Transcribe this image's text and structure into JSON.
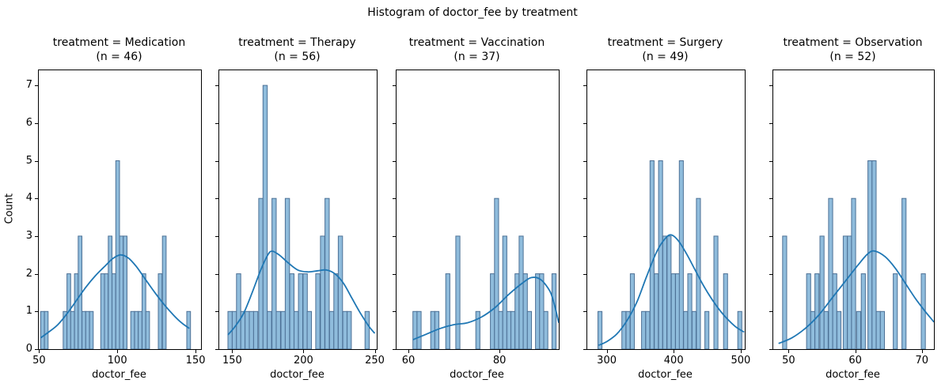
{
  "figure": {
    "suptitle": "Histogram of doctor_fee by treatment",
    "ylabel": "Count",
    "colors": {
      "bar_fill": "#8fbcdc",
      "bar_edge": "#4d7196",
      "kde_line": "#1f77b4",
      "spine": "#000000",
      "background": "#ffffff"
    }
  },
  "chart_data": {
    "type": "histogram",
    "subtype": "faceted histograms with kde overlay",
    "facet_by": "treatment",
    "x_variable": "doctor_fee",
    "y_variable": "Count",
    "title": "Histogram of doctor_fee by treatment",
    "grid": false,
    "legend": false,
    "ylim": [
      0,
      7.4
    ],
    "yticks": [
      0,
      1,
      2,
      3,
      4,
      5,
      6,
      7
    ],
    "panels": [
      {
        "title": "treatment = Medication",
        "subtitle": "(n = 46)",
        "n": 46,
        "xlabel": "doctor_fee",
        "xlim": [
          49.8,
          153.5
        ],
        "xticks": [
          50,
          100,
          150
        ],
        "bin_width": 2.4,
        "bars": [
          [
            51.0,
            1
          ],
          [
            53.4,
            1
          ],
          [
            65.4,
            1
          ],
          [
            67.8,
            2
          ],
          [
            70.2,
            1
          ],
          [
            72.6,
            2
          ],
          [
            75.0,
            3
          ],
          [
            77.4,
            1
          ],
          [
            79.8,
            1
          ],
          [
            82.2,
            1
          ],
          [
            89.4,
            2
          ],
          [
            91.8,
            2
          ],
          [
            94.2,
            3
          ],
          [
            96.6,
            2
          ],
          [
            99.0,
            5
          ],
          [
            101.4,
            3
          ],
          [
            103.8,
            3
          ],
          [
            108.6,
            1
          ],
          [
            111.0,
            1
          ],
          [
            113.4,
            1
          ],
          [
            115.8,
            2
          ],
          [
            118.2,
            1
          ],
          [
            126.2,
            2
          ],
          [
            128.8,
            3
          ],
          [
            144.4,
            1
          ]
        ],
        "kde": [
          [
            51,
            0.3
          ],
          [
            56,
            0.45
          ],
          [
            62,
            0.65
          ],
          [
            68,
            0.95
          ],
          [
            74,
            1.3
          ],
          [
            80,
            1.65
          ],
          [
            86,
            1.95
          ],
          [
            92,
            2.2
          ],
          [
            97,
            2.4
          ],
          [
            102,
            2.5
          ],
          [
            107,
            2.42
          ],
          [
            112,
            2.2
          ],
          [
            118,
            1.85
          ],
          [
            124,
            1.5
          ],
          [
            130,
            1.18
          ],
          [
            136,
            0.9
          ],
          [
            141,
            0.7
          ],
          [
            146,
            0.55
          ]
        ]
      },
      {
        "title": "treatment = Therapy",
        "subtitle": "(n = 56)",
        "n": 56,
        "xlabel": "doctor_fee",
        "xlim": [
          140.9,
          251.4
        ],
        "xticks": [
          150,
          200,
          250
        ],
        "bin_width": 3.0,
        "bars": [
          [
            147.0,
            1
          ],
          [
            150.0,
            1
          ],
          [
            153.0,
            2
          ],
          [
            156.0,
            1
          ],
          [
            159.0,
            1
          ],
          [
            162.0,
            1
          ],
          [
            165.0,
            1
          ],
          [
            168.6,
            4
          ],
          [
            171.6,
            7
          ],
          [
            174.6,
            1
          ],
          [
            177.9,
            4
          ],
          [
            180.9,
            1
          ],
          [
            184.2,
            1
          ],
          [
            187.2,
            4
          ],
          [
            190.4,
            2
          ],
          [
            193.4,
            1
          ],
          [
            196.5,
            2
          ],
          [
            199.7,
            2
          ],
          [
            202.6,
            1
          ],
          [
            208.6,
            2
          ],
          [
            211.9,
            3
          ],
          [
            215.1,
            4
          ],
          [
            218.3,
            1
          ],
          [
            221.3,
            2
          ],
          [
            224.4,
            3
          ],
          [
            227.6,
            1
          ],
          [
            230.6,
            1
          ],
          [
            243.2,
            1
          ]
        ],
        "kde": [
          [
            147,
            0.38
          ],
          [
            152,
            0.6
          ],
          [
            158,
            0.95
          ],
          [
            164,
            1.5
          ],
          [
            170,
            2.1
          ],
          [
            175,
            2.5
          ],
          [
            178,
            2.6
          ],
          [
            183,
            2.5
          ],
          [
            189,
            2.3
          ],
          [
            196,
            2.1
          ],
          [
            203,
            2.05
          ],
          [
            210,
            2.08
          ],
          [
            216,
            2.1
          ],
          [
            222,
            2.0
          ],
          [
            228,
            1.75
          ],
          [
            234,
            1.35
          ],
          [
            240,
            0.95
          ],
          [
            246,
            0.6
          ],
          [
            250,
            0.42
          ]
        ]
      },
      {
        "title": "treatment = Vaccination",
        "subtitle": "(n = 37)",
        "n": 37,
        "xlabel": "doctor_fee",
        "xlim": [
          57.4,
          93.0
        ],
        "xticks": [
          60,
          80
        ],
        "bin_width": 0.9,
        "bars": [
          [
            61.0,
            1
          ],
          [
            61.9,
            1
          ],
          [
            64.9,
            1
          ],
          [
            65.8,
            1
          ],
          [
            68.2,
            2
          ],
          [
            70.4,
            3
          ],
          [
            74.8,
            1
          ],
          [
            78.0,
            2
          ],
          [
            78.9,
            4
          ],
          [
            79.8,
            1
          ],
          [
            80.7,
            3
          ],
          [
            81.6,
            1
          ],
          [
            82.5,
            1
          ],
          [
            83.4,
            2
          ],
          [
            84.3,
            3
          ],
          [
            85.2,
            2
          ],
          [
            86.1,
            1
          ],
          [
            87.9,
            2
          ],
          [
            88.8,
            2
          ],
          [
            89.7,
            1
          ],
          [
            91.5,
            2
          ]
        ],
        "kde": [
          [
            61,
            0.25
          ],
          [
            64,
            0.4
          ],
          [
            67,
            0.55
          ],
          [
            70,
            0.65
          ],
          [
            73,
            0.7
          ],
          [
            76,
            0.85
          ],
          [
            79,
            1.1
          ],
          [
            82,
            1.45
          ],
          [
            85,
            1.75
          ],
          [
            87,
            1.9
          ],
          [
            89,
            1.85
          ],
          [
            91,
            1.55
          ],
          [
            92,
            1.2
          ],
          [
            93,
            0.7
          ]
        ]
      },
      {
        "title": "treatment = Surgery",
        "subtitle": "(n = 49)",
        "n": 49,
        "xlabel": "doctor_fee",
        "xlim": [
          271,
          506
        ],
        "xticks": [
          300,
          400,
          500
        ],
        "bin_width": 6.0,
        "bars": [
          [
            287,
            1
          ],
          [
            322.6,
            1
          ],
          [
            328.9,
            1
          ],
          [
            335.3,
            2
          ],
          [
            352,
            1
          ],
          [
            358.3,
            1
          ],
          [
            364.6,
            5
          ],
          [
            371,
            2
          ],
          [
            377.4,
            5
          ],
          [
            383.7,
            3
          ],
          [
            390,
            3
          ],
          [
            396.4,
            2
          ],
          [
            402.7,
            2
          ],
          [
            408.3,
            5
          ],
          [
            414.7,
            1
          ],
          [
            421,
            2
          ],
          [
            427.4,
            1
          ],
          [
            433.8,
            4
          ],
          [
            446.5,
            1
          ],
          [
            460,
            3
          ],
          [
            474.3,
            2
          ],
          [
            495.6,
            1
          ]
        ],
        "kde": [
          [
            288,
            0.1
          ],
          [
            300,
            0.2
          ],
          [
            315,
            0.4
          ],
          [
            330,
            0.75
          ],
          [
            345,
            1.25
          ],
          [
            360,
            1.95
          ],
          [
            375,
            2.6
          ],
          [
            388,
            2.95
          ],
          [
            397,
            3.03
          ],
          [
            408,
            2.85
          ],
          [
            420,
            2.5
          ],
          [
            432,
            2.1
          ],
          [
            444,
            1.7
          ],
          [
            456,
            1.35
          ],
          [
            468,
            1.05
          ],
          [
            480,
            0.8
          ],
          [
            492,
            0.6
          ],
          [
            505,
            0.45
          ]
        ]
      },
      {
        "title": "treatment = Observation",
        "subtitle": "(n = 52)",
        "n": 52,
        "xlabel": "doctor_fee",
        "xlim": [
          47.7,
          71.8
        ],
        "xticks": [
          50,
          60,
          70
        ],
        "bin_width": 0.62,
        "bars": [
          [
            49.1,
            3
          ],
          [
            52.7,
            2
          ],
          [
            53.32,
            1
          ],
          [
            53.94,
            2
          ],
          [
            54.7,
            3
          ],
          [
            55.32,
            1
          ],
          [
            56.0,
            4
          ],
          [
            56.62,
            2
          ],
          [
            57.24,
            1
          ],
          [
            58.2,
            3
          ],
          [
            58.82,
            3
          ],
          [
            59.44,
            4
          ],
          [
            60.2,
            1
          ],
          [
            60.9,
            2
          ],
          [
            61.9,
            5
          ],
          [
            62.52,
            5
          ],
          [
            63.14,
            1
          ],
          [
            63.76,
            1
          ],
          [
            65.7,
            2
          ],
          [
            67.0,
            4
          ],
          [
            69.9,
            2
          ]
        ],
        "kde": [
          [
            48.5,
            0.15
          ],
          [
            50.5,
            0.3
          ],
          [
            52.5,
            0.55
          ],
          [
            54.5,
            0.9
          ],
          [
            56.5,
            1.35
          ],
          [
            58.5,
            1.8
          ],
          [
            60.5,
            2.25
          ],
          [
            62,
            2.55
          ],
          [
            63,
            2.6
          ],
          [
            64.5,
            2.45
          ],
          [
            66,
            2.15
          ],
          [
            67.5,
            1.75
          ],
          [
            69,
            1.35
          ],
          [
            70.5,
            1.0
          ],
          [
            71.8,
            0.72
          ]
        ]
      }
    ]
  }
}
